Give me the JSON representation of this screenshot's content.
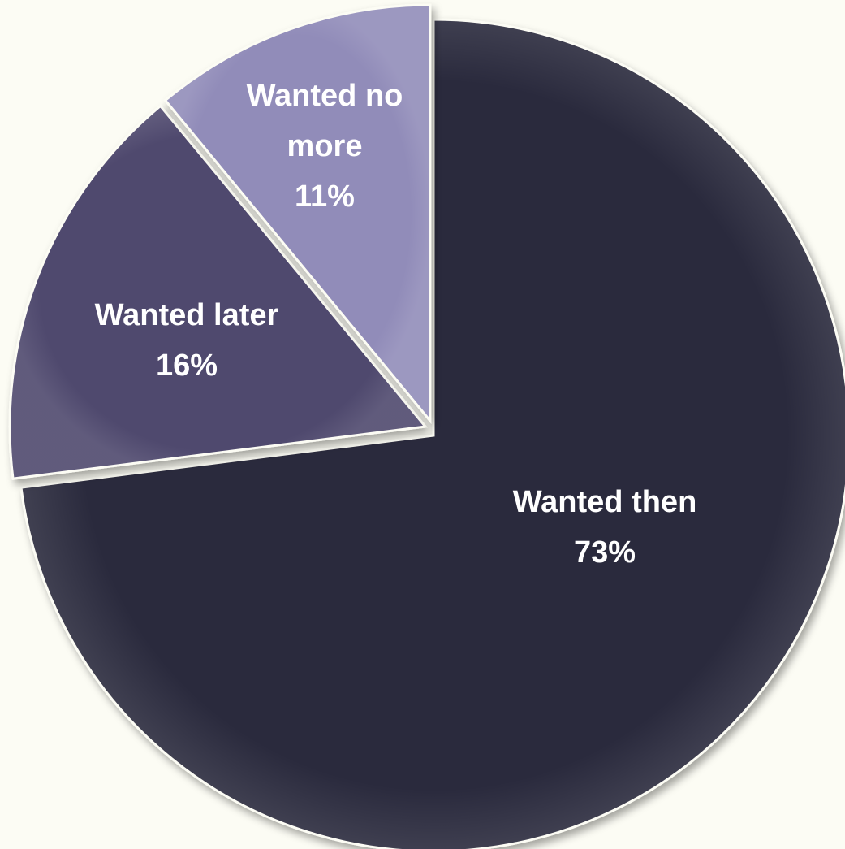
{
  "chart_data": {
    "type": "pie",
    "start_angle_deg": 0,
    "direction": "clockwise",
    "slices": [
      {
        "label_lines": [
          "Wanted then"
        ],
        "value_label": "73%",
        "value": 73,
        "color": "#2c2a3c"
      },
      {
        "label_lines": [
          "Wanted later"
        ],
        "value_label": "16%",
        "value": 16,
        "color": "#4f496e"
      },
      {
        "label_lines": [
          "Wanted no",
          "more"
        ],
        "value_label": "11%",
        "value": 11,
        "color": "#918cb9"
      }
    ]
  }
}
